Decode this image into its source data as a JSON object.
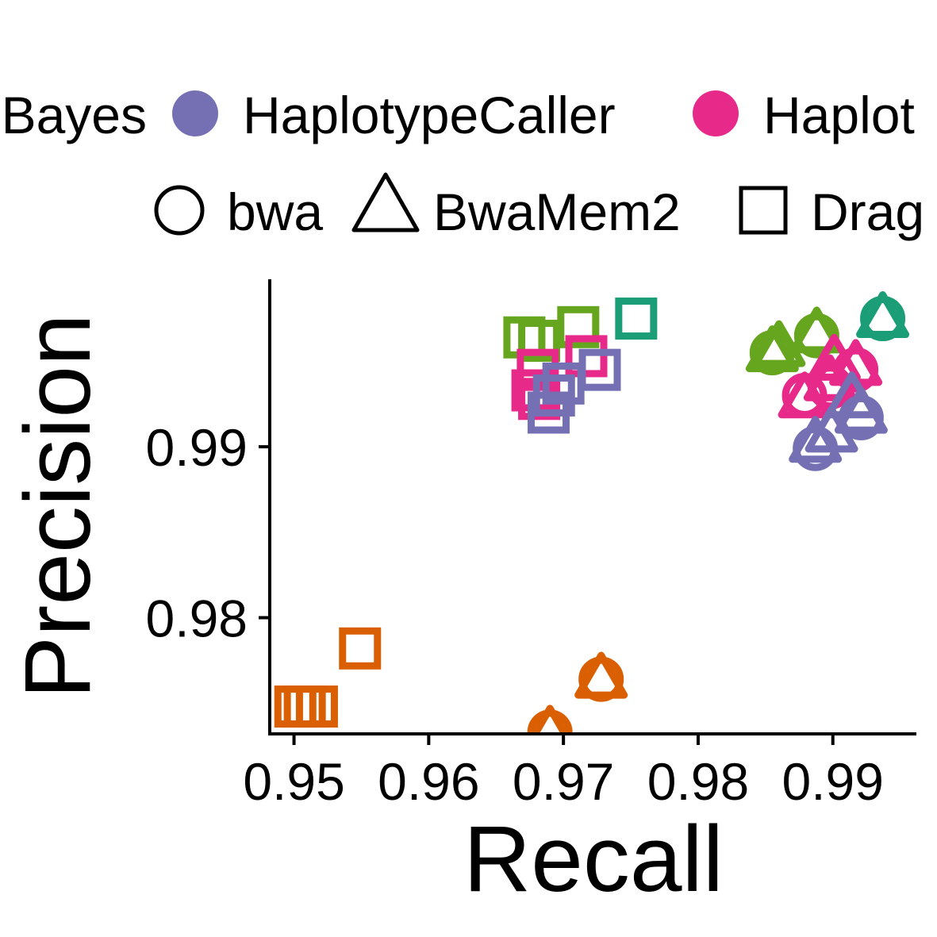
{
  "chart_data": {
    "type": "scatter",
    "title": "",
    "xlabel": "Recall",
    "ylabel": "Precision",
    "xlim": [
      0.9482,
      0.9962
    ],
    "ylim": [
      0.9732,
      0.9998
    ],
    "x_ticks": [
      {
        "value": 0.95,
        "label": "0.95"
      },
      {
        "value": 0.96,
        "label": "0.96"
      },
      {
        "value": 0.97,
        "label": "0.97"
      },
      {
        "value": 0.98,
        "label": "0.98"
      },
      {
        "value": 0.99,
        "label": "0.99"
      }
    ],
    "y_ticks": [
      {
        "value": 0.98,
        "label": "0.98"
      },
      {
        "value": 0.99,
        "label": "0.99"
      }
    ],
    "grid": false,
    "legend_position": "top",
    "color_legend": [
      {
        "label": "Bayes",
        "color": "#1B9E77",
        "visible_label": "Bayes"
      },
      {
        "label": "HaplotypeCaller",
        "color": "#7570B3"
      },
      {
        "label": "Haplot",
        "color": "#E7298A"
      }
    ],
    "shape_legend": [
      {
        "label": "bwa",
        "shape": "circle"
      },
      {
        "label": "BwaMem2",
        "shape": "triangle"
      },
      {
        "label": "Drag",
        "shape": "square"
      }
    ],
    "series": [
      {
        "color": "#D95F02",
        "points": [
          {
            "x": 0.9501,
            "y": 0.9748,
            "shape": "square"
          },
          {
            "x": 0.9508,
            "y": 0.9748,
            "shape": "square"
          },
          {
            "x": 0.9517,
            "y": 0.9748,
            "shape": "square"
          },
          {
            "x": 0.9549,
            "y": 0.9782,
            "shape": "square"
          },
          {
            "x": 0.969,
            "y": 0.9733,
            "shape": "circle"
          },
          {
            "x": 0.969,
            "y": 0.9733,
            "shape": "triangle"
          },
          {
            "x": 0.9728,
            "y": 0.9764,
            "shape": "circle"
          },
          {
            "x": 0.9728,
            "y": 0.9764,
            "shape": "triangle"
          }
        ]
      },
      {
        "color": "#66A61E",
        "points": [
          {
            "x": 0.9671,
            "y": 0.9964,
            "shape": "square"
          },
          {
            "x": 0.9682,
            "y": 0.9962,
            "shape": "square"
          },
          {
            "x": 0.9711,
            "y": 0.997,
            "shape": "square"
          },
          {
            "x": 0.9855,
            "y": 0.9955,
            "shape": "circle"
          },
          {
            "x": 0.9855,
            "y": 0.9955,
            "shape": "triangle"
          },
          {
            "x": 0.986,
            "y": 0.9958,
            "shape": "triangle"
          },
          {
            "x": 0.9888,
            "y": 0.9965,
            "shape": "circle"
          },
          {
            "x": 0.9888,
            "y": 0.9966,
            "shape": "triangle"
          }
        ]
      },
      {
        "color": "#1B9E77",
        "points": [
          {
            "x": 0.9754,
            "y": 0.9975,
            "shape": "square"
          },
          {
            "x": 0.9937,
            "y": 0.9975,
            "shape": "circle"
          },
          {
            "x": 0.9937,
            "y": 0.9975,
            "shape": "triangle"
          }
        ]
      },
      {
        "color": "#E7298A",
        "points": [
          {
            "x": 0.9681,
            "y": 0.9945,
            "shape": "square"
          },
          {
            "x": 0.9677,
            "y": 0.9933,
            "shape": "square"
          },
          {
            "x": 0.9682,
            "y": 0.9928,
            "shape": "square"
          },
          {
            "x": 0.9717,
            "y": 0.9953,
            "shape": "square"
          },
          {
            "x": 0.9879,
            "y": 0.993,
            "shape": "circle"
          },
          {
            "x": 0.9879,
            "y": 0.9928,
            "shape": "triangle"
          },
          {
            "x": 0.9898,
            "y": 0.9935,
            "shape": "circle"
          },
          {
            "x": 0.9898,
            "y": 0.9938,
            "shape": "triangle"
          },
          {
            "x": 0.9917,
            "y": 0.9945,
            "shape": "circle"
          },
          {
            "x": 0.9917,
            "y": 0.9947,
            "shape": "triangle"
          },
          {
            "x": 0.9901,
            "y": 0.995,
            "shape": "triangle"
          }
        ]
      },
      {
        "color": "#7570B3",
        "points": [
          {
            "x": 0.9689,
            "y": 0.992,
            "shape": "square"
          },
          {
            "x": 0.9693,
            "y": 0.993,
            "shape": "square"
          },
          {
            "x": 0.97,
            "y": 0.9937,
            "shape": "square"
          },
          {
            "x": 0.9727,
            "y": 0.9945,
            "shape": "square"
          },
          {
            "x": 0.9887,
            "y": 0.9899,
            "shape": "circle"
          },
          {
            "x": 0.9887,
            "y": 0.9902,
            "shape": "triangle"
          },
          {
            "x": 0.9899,
            "y": 0.9908,
            "shape": "triangle"
          },
          {
            "x": 0.9921,
            "y": 0.9917,
            "shape": "circle"
          },
          {
            "x": 0.9921,
            "y": 0.9919,
            "shape": "triangle"
          },
          {
            "x": 0.9914,
            "y": 0.9928,
            "shape": "triangle"
          }
        ]
      }
    ]
  }
}
